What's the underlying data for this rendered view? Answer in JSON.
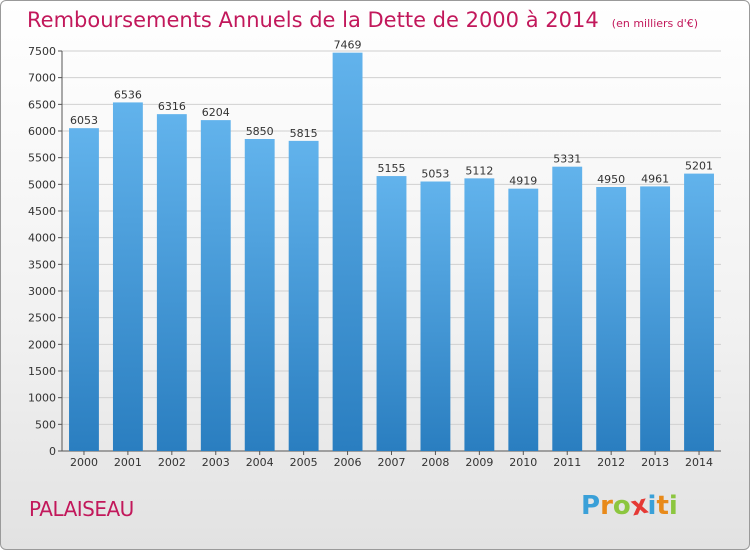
{
  "header": {
    "title": "Remboursements Annuels de la Dette de 2000 à 2014",
    "unit": "(en milliers d'€)"
  },
  "footer": {
    "commune": "PALAISEAU",
    "brand": [
      "P",
      "r",
      "o",
      "x",
      "i",
      "t",
      "i"
    ],
    "brand_colors": [
      "#3aa0d8",
      "#e88a1a",
      "#8cc63f",
      "#e53935",
      "#3aa0d8",
      "#e88a1a",
      "#8cc63f"
    ]
  },
  "colors": {
    "bar_top": "#62b3ec",
    "bar_bottom": "#2a7ec0",
    "grid": "#d0d0d0",
    "axis": "#555555",
    "text": "#333333"
  },
  "chart_data": {
    "type": "bar",
    "categories": [
      "2000",
      "2001",
      "2002",
      "2003",
      "2004",
      "2005",
      "2006",
      "2007",
      "2008",
      "2009",
      "2010",
      "2011",
      "2012",
      "2013",
      "2014"
    ],
    "values": [
      6053,
      6536,
      6316,
      6204,
      5850,
      5815,
      7469,
      5155,
      5053,
      5112,
      4919,
      5331,
      4950,
      4961,
      5201
    ],
    "ylim": [
      0,
      7500
    ],
    "ytick_step": 500,
    "grid": true,
    "data_labels": true
  }
}
